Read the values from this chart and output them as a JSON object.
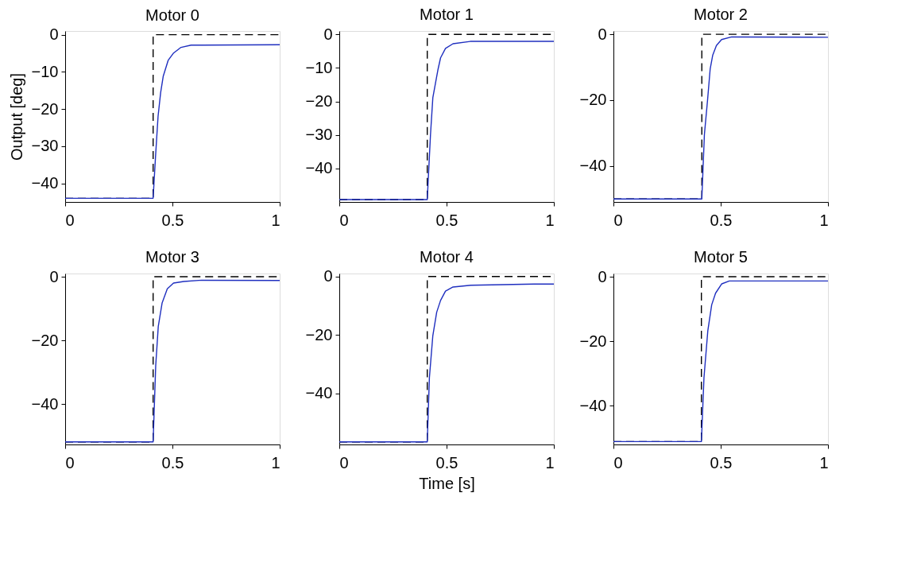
{
  "chart_data": [
    {
      "type": "line",
      "title": "Motor 0",
      "ylabel": "Output [deg]",
      "xlim": [
        0,
        1
      ],
      "xticks": [
        0,
        0.5,
        1
      ],
      "ylim": [
        -45,
        1
      ],
      "yticks": [
        {
          "value": 0,
          "label": "0"
        },
        {
          "value": -10,
          "label": "−10"
        },
        {
          "value": -20,
          "label": "−20"
        },
        {
          "value": -30,
          "label": "−30"
        },
        {
          "value": -40,
          "label": "−40"
        }
      ],
      "grid": false,
      "series": [
        {
          "color": "#000000",
          "line_style": "dashed",
          "x": [
            0,
            0.41,
            0.41,
            1
          ],
          "values": [
            -44,
            -44,
            0,
            0
          ]
        },
        {
          "color": "#1f2fbf",
          "line_style": "solid",
          "x": [
            0,
            0.41,
            0.421,
            0.433,
            0.445,
            0.457,
            0.48,
            0.504,
            0.54,
            0.587,
            1
          ],
          "values": [
            -44,
            -44,
            -33,
            -22,
            -15.6,
            -11.2,
            -6.9,
            -5,
            -3.4,
            -2.8,
            -2.7
          ]
        }
      ]
    },
    {
      "type": "line",
      "title": "Motor 1",
      "xlim": [
        0,
        1
      ],
      "xticks": [
        0,
        0.5,
        1
      ],
      "ylim": [
        -50,
        1
      ],
      "yticks": [
        {
          "value": 0,
          "label": "0"
        },
        {
          "value": -10,
          "label": "−10"
        },
        {
          "value": -20,
          "label": "−20"
        },
        {
          "value": -30,
          "label": "−30"
        },
        {
          "value": -40,
          "label": "−40"
        }
      ],
      "grid": false,
      "series": [
        {
          "color": "#000000",
          "line_style": "dashed",
          "x": [
            0,
            0.41,
            0.41,
            1
          ],
          "values": [
            -49.3,
            -49.3,
            0,
            0
          ]
        },
        {
          "color": "#1f2fbf",
          "line_style": "solid",
          "x": [
            0,
            0.41,
            0.425,
            0.436,
            0.448,
            0.46,
            0.472,
            0.495,
            0.53,
            0.61,
            1
          ],
          "values": [
            -49.3,
            -49.3,
            -30,
            -18.9,
            -14.7,
            -10.5,
            -7,
            -4.2,
            -2.8,
            -2.1,
            -2.1
          ]
        }
      ]
    },
    {
      "type": "line",
      "title": "Motor 2",
      "xlim": [
        0,
        1
      ],
      "xticks": [
        0,
        0.5,
        1
      ],
      "ylim": [
        -51,
        1
      ],
      "yticks": [
        {
          "value": 0,
          "label": "0"
        },
        {
          "value": -20,
          "label": "−20"
        },
        {
          "value": -40,
          "label": "−40"
        }
      ],
      "grid": false,
      "series": [
        {
          "color": "#000000",
          "line_style": "dashed",
          "x": [
            0,
            0.412,
            0.412,
            1
          ],
          "values": [
            -50.1,
            -50.1,
            0,
            0
          ]
        },
        {
          "color": "#1f2fbf",
          "line_style": "solid",
          "x": [
            0,
            0.412,
            0.424,
            0.439,
            0.451,
            0.463,
            0.48,
            0.504,
            0.551,
            1
          ],
          "values": [
            -50.1,
            -50.1,
            -30.5,
            -19.8,
            -10.5,
            -6.3,
            -3.4,
            -1.6,
            -0.8,
            -0.9
          ]
        }
      ]
    },
    {
      "type": "line",
      "title": "Motor 3",
      "xlim": [
        0,
        1
      ],
      "xticks": [
        0,
        0.5,
        1
      ],
      "ylim": [
        -52.6,
        1
      ],
      "yticks": [
        {
          "value": 0,
          "label": "0"
        },
        {
          "value": -20,
          "label": "−20"
        },
        {
          "value": -40,
          "label": "−40"
        }
      ],
      "grid": false,
      "series": [
        {
          "color": "#000000",
          "line_style": "dashed",
          "x": [
            0,
            0.41,
            0.41,
            1
          ],
          "values": [
            -51.8,
            -51.8,
            0,
            0
          ]
        },
        {
          "color": "#1f2fbf",
          "line_style": "solid",
          "x": [
            0,
            0.41,
            0.422,
            0.434,
            0.452,
            0.476,
            0.505,
            0.553,
            0.636,
            1
          ],
          "values": [
            -51.8,
            -51.8,
            -28,
            -15.6,
            -8.2,
            -3.8,
            -2,
            -1.5,
            -1.1,
            -1.2
          ]
        }
      ]
    },
    {
      "type": "line",
      "title": "Motor 4",
      "xlabel": "Time [s]",
      "xlim": [
        0,
        1
      ],
      "xticks": [
        0,
        0.5,
        1
      ],
      "ylim": [
        -57.4,
        1
      ],
      "yticks": [
        {
          "value": 0,
          "label": "0"
        },
        {
          "value": -20,
          "label": "−20"
        },
        {
          "value": -40,
          "label": "−40"
        }
      ],
      "grid": false,
      "series": [
        {
          "color": "#000000",
          "line_style": "dashed",
          "x": [
            0,
            0.41,
            0.41,
            1
          ],
          "values": [
            -56.5,
            -56.5,
            0,
            0
          ]
        },
        {
          "color": "#1f2fbf",
          "line_style": "solid",
          "x": [
            0,
            0.41,
            0.42,
            0.436,
            0.454,
            0.472,
            0.495,
            0.53,
            0.613,
            0.908,
            1
          ],
          "values": [
            -56.5,
            -56.5,
            -34.6,
            -20.2,
            -12.2,
            -8.2,
            -5,
            -3.6,
            -3,
            -2.6,
            -2.6
          ]
        }
      ]
    },
    {
      "type": "line",
      "title": "Motor 5",
      "xlim": [
        0,
        1
      ],
      "xticks": [
        0,
        0.5,
        1
      ],
      "ylim": [
        -52,
        1
      ],
      "yticks": [
        {
          "value": 0,
          "label": "0"
        },
        {
          "value": -20,
          "label": "−20"
        },
        {
          "value": -40,
          "label": "−40"
        }
      ],
      "grid": false,
      "series": [
        {
          "color": "#000000",
          "line_style": "dashed",
          "x": [
            0,
            0.41,
            0.41,
            1
          ],
          "values": [
            -51.1,
            -51.1,
            0,
            0
          ]
        },
        {
          "color": "#1f2fbf",
          "line_style": "solid",
          "x": [
            0,
            0.41,
            0.422,
            0.44,
            0.458,
            0.476,
            0.505,
            0.54,
            1
          ],
          "values": [
            -51.1,
            -51.1,
            -31.3,
            -16.7,
            -8.7,
            -5.1,
            -2.2,
            -1.3,
            -1.3
          ]
        }
      ]
    }
  ]
}
